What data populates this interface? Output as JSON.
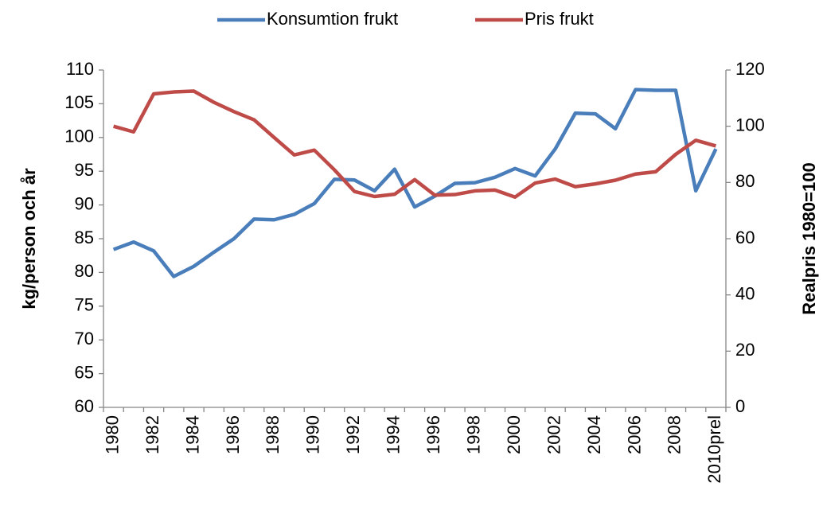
{
  "chart_data": {
    "type": "line",
    "categories": [
      "1980",
      null,
      "1982",
      null,
      "1984",
      null,
      "1986",
      null,
      "1988",
      null,
      "1990",
      null,
      "1992",
      null,
      "1994",
      null,
      "1996",
      null,
      "1998",
      null,
      "2000",
      null,
      "2002",
      null,
      "2004",
      null,
      "2006",
      null,
      "2008",
      null,
      "2010prel"
    ],
    "series": [
      {
        "name": "Konsumtion frukt",
        "color": "#4a7ebb",
        "values": [
          83.4,
          84.5,
          83.2,
          79.4,
          80.9,
          83.0,
          85.0,
          87.9,
          87.8,
          88.6,
          90.2,
          93.8,
          93.7,
          92.1,
          95.3,
          89.7,
          91.3,
          93.2,
          93.3,
          94.1,
          95.4,
          94.3,
          98.3,
          103.6,
          103.5,
          101.3,
          107.1,
          107.0,
          107.0,
          92.1,
          98.3
        ]
      },
      {
        "name": "Pris frukt",
        "color": "#be4b48",
        "axis": "y2",
        "values": [
          100,
          98,
          111.5,
          112.2,
          112.5,
          108.5,
          105.2,
          102.3,
          96,
          89.8,
          91.5,
          84.5,
          76.8,
          75,
          75.8,
          81,
          75.5,
          75.7,
          77,
          77.3,
          74.8,
          79.8,
          81.2,
          78.5,
          79.5,
          80.8,
          83,
          83.8,
          90,
          95,
          93
        ]
      }
    ],
    "y_label": "kg/person  och år",
    "y2_label": "Realpris 1980=100",
    "ylim": [
      60,
      110
    ],
    "yticks": [
      60,
      65,
      70,
      75,
      80,
      85,
      90,
      95,
      100,
      105,
      110
    ],
    "y2lim": [
      0,
      120
    ],
    "y2ticks": [
      0,
      20,
      40,
      60,
      80,
      100,
      120
    ],
    "grid": false,
    "legend": "top"
  }
}
